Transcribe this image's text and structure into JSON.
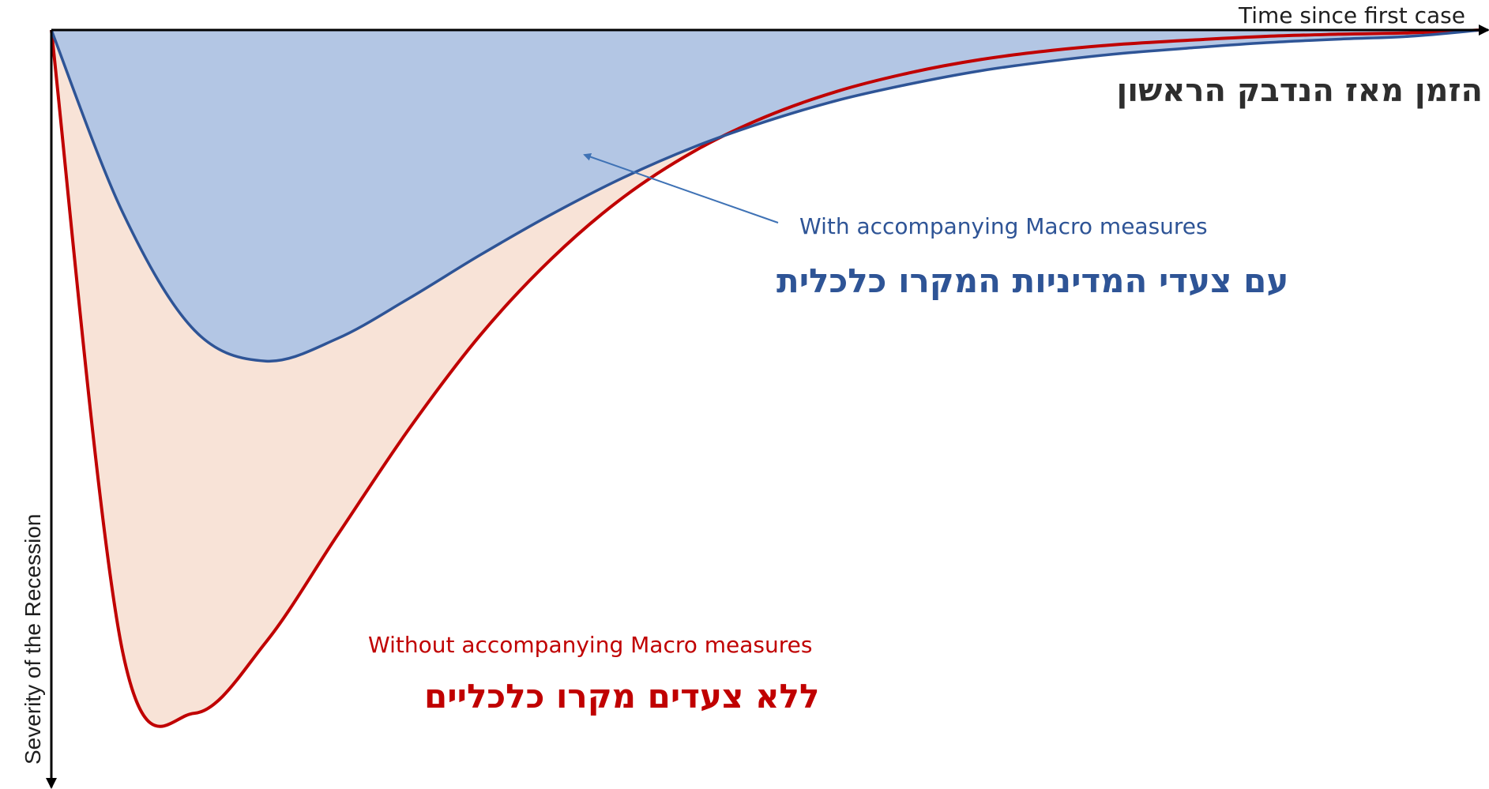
{
  "colors": {
    "with_fill": "#b3c6e4",
    "with_line": "#2e5496",
    "without_fill": "#f8e3d7",
    "without_line": "#c00000",
    "axis": "#000000",
    "with_text": "#2e5496",
    "without_text": "#c00000",
    "arrow": "#3f72b5"
  },
  "chart_data": {
    "type": "area",
    "x_axis": {
      "label_en": "Time since first case",
      "label_he": "הזמן מאז הנדבק הראשון",
      "ticks": []
    },
    "y_axis": {
      "label_en": "Severity of the Recession",
      "direction": "downward",
      "ticks": []
    },
    "series": [
      {
        "name": "Without accompanying Macro measures",
        "name_he": "ללא צעדים מקרו כלכליים",
        "x": [
          0,
          0.05,
          0.1,
          0.15,
          0.2,
          0.25,
          0.3,
          0.35,
          0.4,
          0.45,
          0.5,
          0.55,
          0.6,
          0.65,
          0.7,
          0.75,
          0.8,
          0.85,
          0.9,
          0.95,
          1
        ],
        "y": [
          0,
          0.886,
          0.972,
          0.871,
          0.719,
          0.568,
          0.434,
          0.325,
          0.238,
          0.172,
          0.123,
          0.087,
          0.061,
          0.042,
          0.029,
          0.02,
          0.014,
          0.009,
          0.006,
          0.004,
          0
        ]
      },
      {
        "name": "With accompanying Macro measures",
        "name_he": "עם צעדי המדיניות המקרו כלכלית",
        "x": [
          0,
          0.05,
          0.1,
          0.15,
          0.2,
          0.25,
          0.3,
          0.35,
          0.4,
          0.45,
          0.5,
          0.55,
          0.6,
          0.65,
          0.7,
          0.75,
          0.8,
          0.85,
          0.9,
          0.95,
          1
        ],
        "y": [
          0,
          0.26,
          0.427,
          0.471,
          0.439,
          0.382,
          0.32,
          0.262,
          0.21,
          0.166,
          0.13,
          0.1,
          0.077,
          0.058,
          0.044,
          0.033,
          0.025,
          0.018,
          0.013,
          0.009,
          0
        ]
      }
    ],
    "annotations": [
      {
        "text": "With accompanying Macro measures",
        "target_series": "With accompanying Macro measures"
      }
    ],
    "grid": false,
    "legend": "none"
  }
}
